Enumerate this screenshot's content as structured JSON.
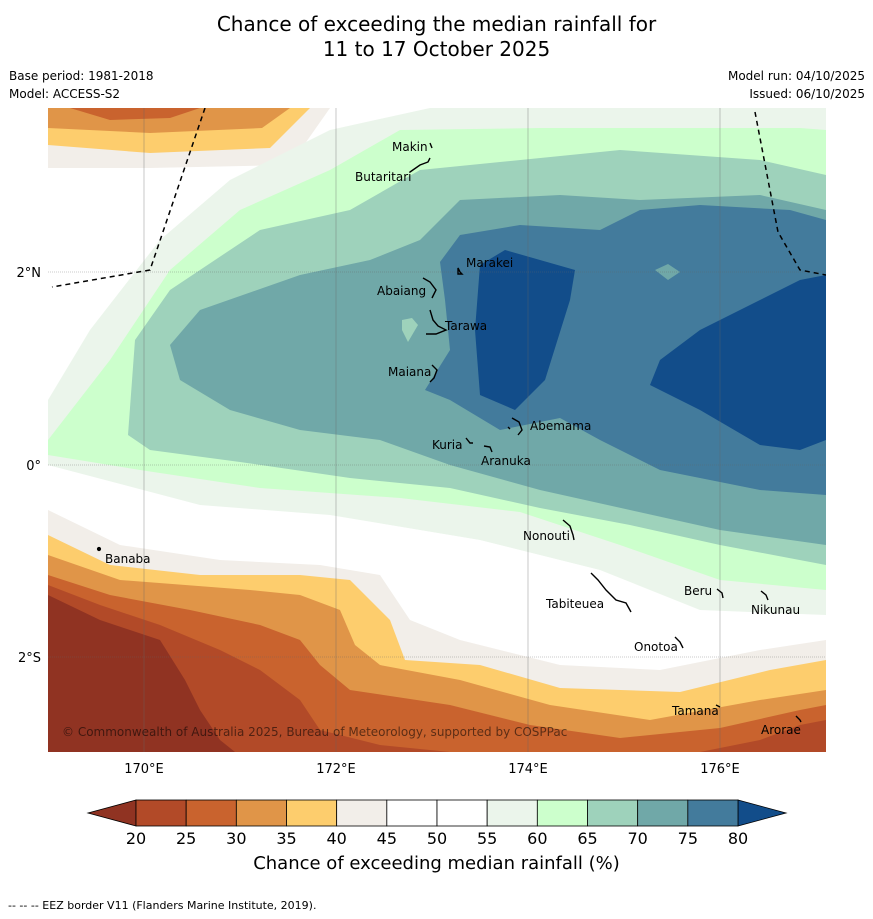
{
  "title": {
    "line1": "Chance of exceeding the median rainfall for",
    "line2": "11 to 17 October 2025"
  },
  "meta": {
    "base_period": "Base period: 1981-2018",
    "model": "Model: ACCESS-S2",
    "model_run": "Model run: 04/10/2025",
    "issued": "Issued: 06/10/2025"
  },
  "map": {
    "lon_labels": [
      "170°E",
      "172°E",
      "174°E",
      "176°E"
    ],
    "lat_labels": [
      "2°N",
      "0°",
      "2°S"
    ],
    "copyright": "© Commonwealth of Australia 2025, Bureau of Meteorology, supported by COSPPac",
    "places": [
      "Makin",
      "Butaritari",
      "Marakei",
      "Abaiang",
      "Tarawa",
      "Maiana",
      "Abemama",
      "Kuria",
      "Aranuka",
      "Nonouti",
      "Banaba",
      "Beru",
      "Tabiteuea",
      "Nikunau",
      "Onotoa",
      "Tamana",
      "Arorae"
    ]
  },
  "colorbar": {
    "ticks": [
      "20",
      "25",
      "30",
      "35",
      "40",
      "45",
      "50",
      "55",
      "60",
      "65",
      "70",
      "75",
      "80"
    ],
    "colors": [
      "#b24a28",
      "#c9632e",
      "#e09548",
      "#fdcd6d",
      "#f2eee9",
      "#ffffff",
      "#ffffff",
      "#ebf5eb",
      "#ccffcc",
      "#9ed2bb",
      "#70a8a8",
      "#437b9c"
    ],
    "under_color": "#903322",
    "over_color": "#124d8a",
    "label": "Chance of exceeding median rainfall (%)"
  },
  "footer": "--  --  -- EEZ border V11 (Flanders Marine Institute, 2019)."
}
